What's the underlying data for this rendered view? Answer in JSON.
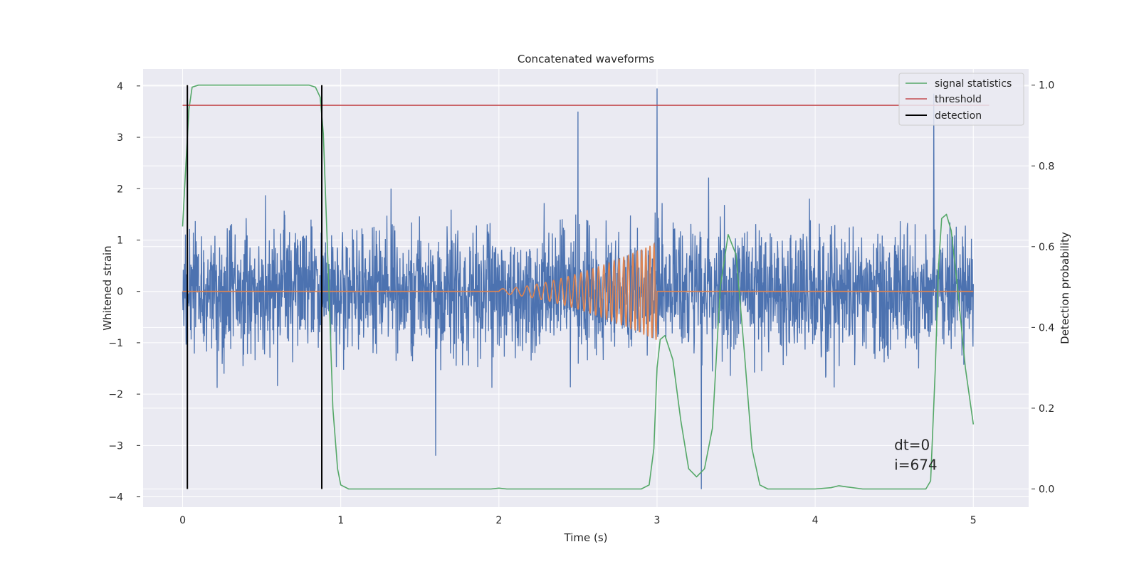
{
  "chart_data": {
    "type": "line",
    "title": "Concatenated waveforms",
    "xlabel": "Time (s)",
    "ylabel": "Whitened strain",
    "ylabel_right": "Detection probability",
    "xlim": [
      -0.25,
      5.35
    ],
    "ylim": [
      -4.2,
      4.33
    ],
    "ylim_right": [
      -0.045,
      1.04
    ],
    "x_ticks": [
      0,
      1,
      2,
      3,
      4,
      5
    ],
    "x_tick_labels": [
      "0",
      "1",
      "2",
      "3",
      "4",
      "5"
    ],
    "y_ticks": [
      -4,
      -3,
      -2,
      -1,
      0,
      1,
      2,
      3,
      4
    ],
    "y_tick_labels": [
      "−4",
      "−3",
      "−2",
      "−1",
      "0",
      "1",
      "2",
      "3",
      "4"
    ],
    "y_right_ticks": [
      0.0,
      0.2,
      0.4,
      0.6,
      0.8,
      1.0
    ],
    "y_right_tick_labels": [
      "0.0",
      "0.2",
      "0.4",
      "0.6",
      "0.8",
      "1.0"
    ],
    "grid": true,
    "legend_position": "top-right",
    "legend": [
      "signal statistics",
      "threshold",
      "detection"
    ],
    "series": [
      {
        "key": "strain",
        "axis": "left",
        "color": "#4c72b0",
        "noise": {
          "x_range": [
            0,
            5
          ],
          "typical_abs_peak": 1.7,
          "extreme_min": -3.85,
          "extreme_max": 3.95
        }
      },
      {
        "key": "injected_waveform",
        "axis": "left",
        "color": "#dd8452",
        "chirp": {
          "start": 2.0,
          "end": 3.0,
          "start_amplitude": 0.05,
          "end_amplitude": 0.95,
          "start_frequency": 10,
          "end_frequency": 40
        }
      },
      {
        "name": "signal statistics",
        "axis": "right",
        "color": "#55a868",
        "x": [
          0,
          0.02,
          0.04,
          0.06,
          0.1,
          0.2,
          0.4,
          0.6,
          0.8,
          0.84,
          0.87,
          0.89,
          0.92,
          0.95,
          0.98,
          1.0,
          1.05,
          1.2,
          1.5,
          1.95,
          2.0,
          2.05,
          2.2,
          2.6,
          2.9,
          2.95,
          2.98,
          3.0,
          3.02,
          3.05,
          3.1,
          3.15,
          3.2,
          3.25,
          3.3,
          3.35,
          3.4,
          3.45,
          3.5,
          3.55,
          3.6,
          3.65,
          3.7,
          3.8,
          4.0,
          4.1,
          4.15,
          4.2,
          4.3,
          4.5,
          4.7,
          4.73,
          4.76,
          4.78,
          4.8,
          4.83,
          4.86,
          4.9,
          4.95,
          5.0
        ],
        "y": [
          0.65,
          0.8,
          0.94,
          0.995,
          1.0,
          1.0,
          1.0,
          1.0,
          1.0,
          0.995,
          0.97,
          0.88,
          0.55,
          0.2,
          0.05,
          0.01,
          0.0,
          0.0,
          0.0,
          0.0,
          0.002,
          0.0,
          0.0,
          0.0,
          0.0,
          0.01,
          0.1,
          0.3,
          0.37,
          0.38,
          0.32,
          0.17,
          0.05,
          0.03,
          0.05,
          0.15,
          0.5,
          0.63,
          0.58,
          0.35,
          0.1,
          0.01,
          0.0,
          0.0,
          0.0,
          0.003,
          0.008,
          0.005,
          0.0,
          0.0,
          0.0,
          0.02,
          0.3,
          0.55,
          0.67,
          0.68,
          0.64,
          0.5,
          0.3,
          0.16
        ]
      },
      {
        "name": "threshold",
        "axis": "right",
        "color": "#c44e52",
        "x": [
          0,
          5.1
        ],
        "y": [
          0.95,
          0.95
        ]
      },
      {
        "name": "detection",
        "axis": "right",
        "color": "#000000",
        "x": [
          0.03,
          0.88
        ],
        "y_range": [
          0.0,
          1.0
        ]
      }
    ],
    "annotations": [
      "dt=0",
      "i=674"
    ],
    "annotation_position": [
      4.5,
      -3.0
    ]
  }
}
